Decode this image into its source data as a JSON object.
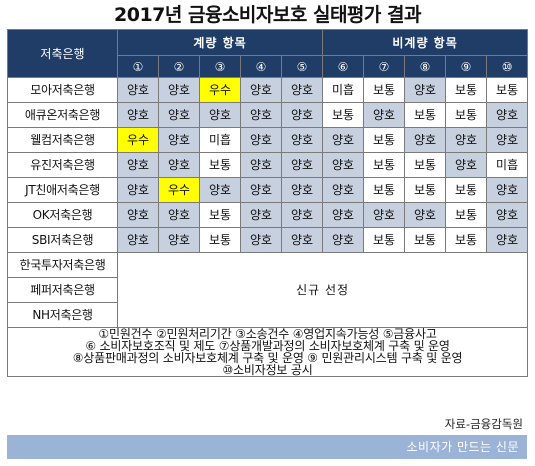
{
  "title": "2017년 금융소비자보호 실태평가 결과",
  "header": {
    "bank_label": "저축은행",
    "group_quant": "계량 항목",
    "group_nonquant": "비계량 항목",
    "nums": [
      "①",
      "②",
      "③",
      "④",
      "⑤",
      "⑥",
      "⑦",
      "⑧",
      "⑨",
      "⑩"
    ]
  },
  "rows": [
    {
      "bank": "모아저축은행",
      "grades": [
        "양호",
        "양호",
        "우수",
        "양호",
        "양호",
        "미흡",
        "보통",
        "양호",
        "보통",
        "보통"
      ]
    },
    {
      "bank": "애큐온저축은행",
      "grades": [
        "양호",
        "양호",
        "양호",
        "양호",
        "양호",
        "보통",
        "양호",
        "보통",
        "보통",
        "양호"
      ]
    },
    {
      "bank": "웰컴저축은행",
      "grades": [
        "우수",
        "양호",
        "미흡",
        "양호",
        "양호",
        "양호",
        "보통",
        "양호",
        "양호",
        "양호"
      ]
    },
    {
      "bank": "유진저축은행",
      "grades": [
        "양호",
        "양호",
        "보통",
        "양호",
        "양호",
        "양호",
        "보통",
        "보통",
        "양호",
        "미흡"
      ]
    },
    {
      "bank": "JT친애저축은행",
      "grades": [
        "양호",
        "우수",
        "양호",
        "양호",
        "양호",
        "양호",
        "보통",
        "보통",
        "보통",
        "양호"
      ]
    },
    {
      "bank": "OK저축은행",
      "grades": [
        "양호",
        "양호",
        "보통",
        "양호",
        "양호",
        "양호",
        "양호",
        "양호",
        "보통",
        "양호"
      ]
    },
    {
      "bank": "SBI저축은행",
      "grades": [
        "양호",
        "양호",
        "보통",
        "양호",
        "양호",
        "양호",
        "보통",
        "보통",
        "보통",
        "양호"
      ]
    }
  ],
  "new_banks": [
    "한국투자저축은행",
    "페퍼저축은행",
    "NH저축은행"
  ],
  "new_selection_label": "신규 선정",
  "notes": [
    "①민원건수 ②민원처리기간 ③소송건수 ④영업지속가능성 ⑤금융사고",
    "⑥ 소비자보호조직 및 제도 ⑦상품개발과정의 소비자보호체계 구축 및 운영",
    "⑧상품판매과정의 소비자보호체계 구축 및 운영 ⑨ 민원관리시스템 구축 및 운영",
    "⑩소비자정보 공시"
  ],
  "source": "자료-금융감독원",
  "footer": "소비자가 만드는 신문",
  "colors": {
    "header_bg": "#1f3d67",
    "good": "#c6d0df",
    "excellent": "#ffff00",
    "footer_bg": "#9bb3d7"
  }
}
